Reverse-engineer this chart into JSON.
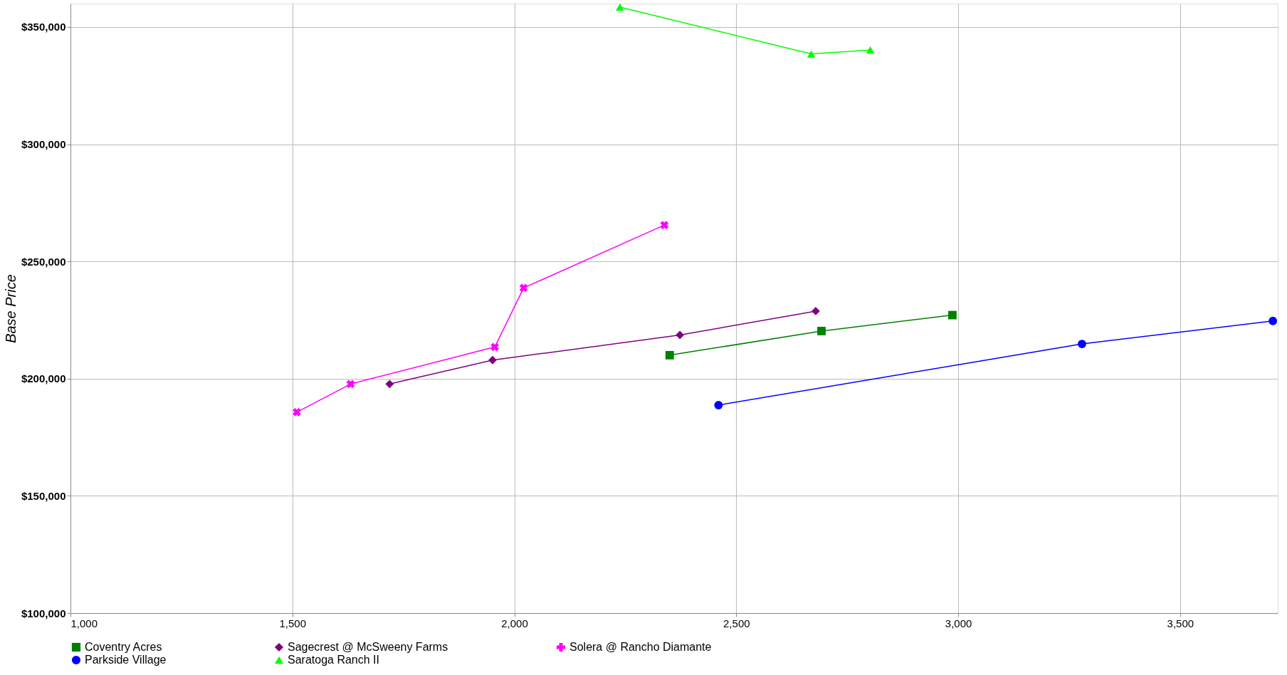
{
  "chart_data": {
    "type": "line",
    "ylabel": "Base Price",
    "line_style": "solid",
    "grid": true,
    "legend": "bottom",
    "xlim": [
      1000,
      3720
    ],
    "xticks": [
      {
        "value": 1000,
        "label": "1,000"
      },
      {
        "value": 1500,
        "label": "1,500"
      },
      {
        "value": 2000,
        "label": "2,000"
      },
      {
        "value": 2500,
        "label": "2,500"
      },
      {
        "value": 3000,
        "label": "3,000"
      },
      {
        "value": 3500,
        "label": "3,500"
      }
    ],
    "ylim": [
      100000,
      360000
    ],
    "yticks": [
      {
        "value": 100000,
        "label": "$100,000"
      },
      {
        "value": 150000,
        "label": "$150,000"
      },
      {
        "value": 200000,
        "label": "$200,000"
      },
      {
        "value": 250000,
        "label": "$250,000"
      },
      {
        "value": 300000,
        "label": "$300,000"
      },
      {
        "value": 350000,
        "label": "$350,000"
      }
    ],
    "series": [
      {
        "name": "Coventry Acres",
        "color": "#008000",
        "marker": "square",
        "x": [
          2350,
          2692,
          2987
        ],
        "values": [
          210000,
          220300,
          227100
        ]
      },
      {
        "name": "Sagecrest @ McSweeny Farms",
        "color": "#800080",
        "marker": "diamond",
        "x": [
          1719,
          1951,
          2373,
          2679
        ],
        "values": [
          197700,
          207900,
          218600,
          228800
        ]
      },
      {
        "name": "Solera @ Rancho Diamante",
        "color": "#ff00ff",
        "marker": "cross",
        "x": [
          1510,
          1631,
          1956,
          2021,
          2338
        ],
        "values": [
          185700,
          197700,
          213500,
          238700,
          265500
        ]
      },
      {
        "name": "Parkside Village",
        "color": "#0000ff",
        "marker": "circle",
        "x": [
          2460,
          3279,
          3709
        ],
        "values": [
          188700,
          214800,
          224600
        ]
      },
      {
        "name": "Saratoga Ranch II",
        "color": "#00ff00",
        "marker": "triangle",
        "x": [
          2238,
          2669,
          2802
        ],
        "values": [
          358500,
          338500,
          340200
        ]
      }
    ]
  }
}
